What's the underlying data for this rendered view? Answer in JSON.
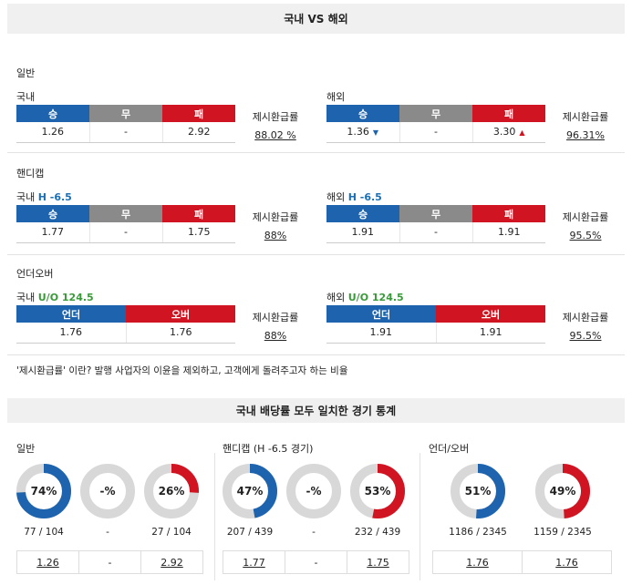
{
  "header": {
    "title": "국내 VS 해외"
  },
  "sections": {
    "general": {
      "label": "일반"
    },
    "handicap": {
      "label": "핸디캡"
    },
    "underover": {
      "label": "언더오버"
    }
  },
  "odds": {
    "general_dom": {
      "label": "국내",
      "h1": "승",
      "h2": "무",
      "h3": "패",
      "v1": "1.26",
      "v2": "-",
      "v3": "2.92",
      "refund_label": "제시환급률",
      "refund": "88.02 %"
    },
    "general_int": {
      "label": "해외",
      "h1": "승",
      "h2": "무",
      "h3": "패",
      "v1": "1.36",
      "v2": "-",
      "v3": "3.30",
      "refund_label": "제시환급률",
      "refund": "96.31%"
    },
    "hc_dom": {
      "label": "국내",
      "line": "H -6.5",
      "h1": "승",
      "h2": "무",
      "h3": "패",
      "v1": "1.77",
      "v2": "-",
      "v3": "1.75",
      "refund_label": "제시환급률",
      "refund": "88%"
    },
    "hc_int": {
      "label": "해외",
      "line": "H -6.5",
      "h1": "승",
      "h2": "무",
      "h3": "패",
      "v1": "1.91",
      "v2": "-",
      "v3": "1.91",
      "refund_label": "제시환급률",
      "refund": "95.5%"
    },
    "uo_dom": {
      "label": "국내",
      "line": "U/O 124.5",
      "h1": "언더",
      "h2": "오버",
      "v1": "1.76",
      "v2": "1.76",
      "refund_label": "제시환급률",
      "refund": "88%"
    },
    "uo_int": {
      "label": "해외",
      "line": "U/O 124.5",
      "h1": "언더",
      "h2": "오버",
      "v1": "1.91",
      "v2": "1.91",
      "refund_label": "제시환급률",
      "refund": "95.5%"
    }
  },
  "note": "'제시환급률' 이란? 발행 사업자의 이윤을 제외하고, 고객에게 돌려주고자 하는 비율",
  "stats": {
    "title": "국내 배당률 모두 일치한 경기 통계",
    "general": {
      "label": "일반",
      "donuts": [
        {
          "pct_text": "74%",
          "pct": 74,
          "count": "77 / 104",
          "color": "#1d63ad",
          "value": "1.26"
        },
        {
          "pct_text": "-%",
          "pct": 0,
          "count": "-",
          "color": "#cccccc",
          "value": "-"
        },
        {
          "pct_text": "26%",
          "pct": 26,
          "count": "27 / 104",
          "color": "#d01421",
          "value": "2.92"
        }
      ]
    },
    "handicap": {
      "label": "핸디캡 (H -6.5 경기)",
      "donuts": [
        {
          "pct_text": "47%",
          "pct": 47,
          "count": "207 / 439",
          "color": "#1d63ad",
          "value": "1.77"
        },
        {
          "pct_text": "-%",
          "pct": 0,
          "count": "-",
          "color": "#cccccc",
          "value": "-"
        },
        {
          "pct_text": "53%",
          "pct": 53,
          "count": "232 / 439",
          "color": "#d01421",
          "value": "1.75"
        }
      ]
    },
    "underover": {
      "label": "언더/오버",
      "donuts": [
        {
          "pct_text": "51%",
          "pct": 51,
          "count": "1186 / 2345",
          "color": "#1d63ad",
          "value": "1.76"
        },
        {
          "pct_text": "49%",
          "pct": 49,
          "count": "1159 / 2345",
          "color": "#d01421",
          "value": "1.76"
        }
      ]
    }
  },
  "colors": {
    "blue": "#1d63ad",
    "gray": "#8a8a8a",
    "red": "#d01421",
    "track": "#d8d8d8"
  }
}
